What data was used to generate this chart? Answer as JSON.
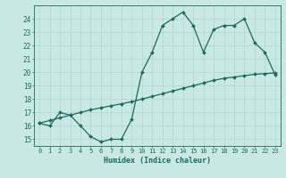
{
  "line1_x": [
    0,
    1,
    2,
    3,
    4,
    5,
    6,
    7,
    8,
    9,
    10,
    11,
    12,
    13,
    14,
    15,
    16,
    17,
    18,
    19,
    20,
    21,
    22,
    23
  ],
  "line1_y": [
    16.2,
    16.0,
    17.0,
    16.8,
    16.0,
    15.2,
    14.8,
    15.0,
    15.0,
    16.5,
    20.0,
    21.5,
    23.5,
    24.0,
    24.5,
    23.5,
    21.5,
    23.2,
    23.5,
    23.5,
    24.0,
    22.2,
    21.5,
    19.8
  ],
  "line2_x": [
    0,
    1,
    2,
    3,
    4,
    5,
    6,
    7,
    8,
    9,
    10,
    11,
    12,
    13,
    14,
    15,
    16,
    17,
    18,
    19,
    20,
    21,
    22,
    23
  ],
  "line2_y": [
    16.2,
    16.4,
    16.6,
    16.8,
    17.0,
    17.2,
    17.35,
    17.5,
    17.65,
    17.8,
    18.0,
    18.2,
    18.4,
    18.6,
    18.8,
    19.0,
    19.2,
    19.4,
    19.55,
    19.65,
    19.75,
    19.85,
    19.9,
    19.95
  ],
  "line_color": "#1a6b5a",
  "bg_color": "#c8e8e4",
  "grid_color": "#b0d4cf",
  "xlabel": "Humidex (Indice chaleur)",
  "ylim": [
    14.5,
    25.0
  ],
  "xlim": [
    -0.5,
    23.5
  ],
  "yticks": [
    15,
    16,
    17,
    18,
    19,
    20,
    21,
    22,
    23,
    24
  ],
  "xticks": [
    0,
    1,
    2,
    3,
    4,
    5,
    6,
    7,
    8,
    9,
    10,
    11,
    12,
    13,
    14,
    15,
    16,
    17,
    18,
    19,
    20,
    21,
    22,
    23
  ],
  "marker": "D",
  "markersize": 2.0,
  "linewidth": 0.9
}
